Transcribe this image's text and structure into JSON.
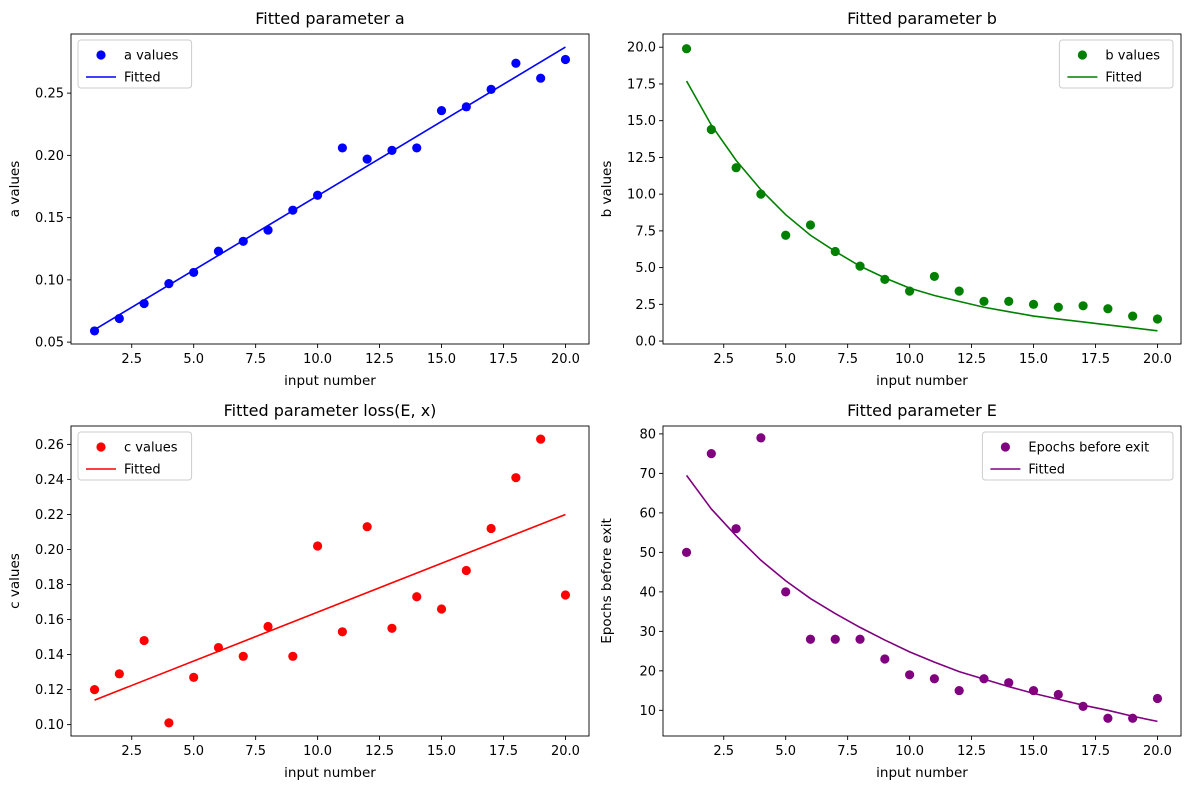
{
  "chart_data": [
    {
      "type": "scatter",
      "title": "Fitted parameter a",
      "xlabel": "input number",
      "ylabel": "a values",
      "xlim": [
        0.05,
        20.95
      ],
      "ylim": [
        0.0485,
        0.2975
      ],
      "xticks": [
        "2.5",
        "5.0",
        "7.5",
        "10.0",
        "12.5",
        "15.0",
        "17.5",
        "20.0"
      ],
      "yticks": [
        "0.05",
        "0.10",
        "0.15",
        "0.20",
        "0.25"
      ],
      "legend_position": "upper-left",
      "grid": false,
      "series": [
        {
          "name": "a values",
          "kind": "scatter",
          "color": "#0000ff",
          "x": [
            1,
            2,
            3,
            4,
            5,
            6,
            7,
            8,
            9,
            10,
            11,
            12,
            13,
            14,
            15,
            16,
            17,
            18,
            19,
            20
          ],
          "y": [
            0.059,
            0.069,
            0.081,
            0.097,
            0.106,
            0.123,
            0.131,
            0.14,
            0.156,
            0.168,
            0.206,
            0.197,
            0.204,
            0.206,
            0.236,
            0.239,
            0.253,
            0.274,
            0.262,
            0.277
          ]
        },
        {
          "name": "Fitted",
          "kind": "line",
          "color": "#0000ff",
          "x": [
            1,
            20
          ],
          "y": [
            0.06,
            0.287
          ]
        }
      ]
    },
    {
      "type": "scatter",
      "title": "Fitted parameter b",
      "xlabel": "input number",
      "ylabel": "b values",
      "xlim": [
        0.05,
        20.95
      ],
      "ylim": [
        -0.2,
        20.9
      ],
      "xticks": [
        "2.5",
        "5.0",
        "7.5",
        "10.0",
        "12.5",
        "15.0",
        "17.5",
        "20.0"
      ],
      "yticks": [
        "0.0",
        "2.5",
        "5.0",
        "7.5",
        "10.0",
        "12.5",
        "15.0",
        "17.5",
        "20.0"
      ],
      "legend_position": "upper-right",
      "grid": false,
      "series": [
        {
          "name": "b values",
          "kind": "scatter",
          "color": "#008000",
          "x": [
            1,
            2,
            3,
            4,
            5,
            6,
            7,
            8,
            9,
            10,
            11,
            12,
            13,
            14,
            15,
            16,
            17,
            18,
            19,
            20
          ],
          "y": [
            19.9,
            14.4,
            11.8,
            10.0,
            7.2,
            7.9,
            6.1,
            5.1,
            4.2,
            3.4,
            4.4,
            3.4,
            2.7,
            2.7,
            2.5,
            2.3,
            2.4,
            2.2,
            1.7,
            1.5
          ]
        },
        {
          "name": "Fitted",
          "kind": "line",
          "color": "#008000",
          "x": [
            1,
            2,
            3,
            4,
            5,
            6,
            7,
            8,
            9,
            10,
            11,
            12,
            13,
            14,
            15,
            16,
            17,
            18,
            19,
            20
          ],
          "y": [
            17.7,
            14.7,
            12.3,
            10.3,
            8.6,
            7.2,
            6.1,
            5.1,
            4.3,
            3.6,
            3.1,
            2.7,
            2.3,
            2.0,
            1.7,
            1.5,
            1.3,
            1.1,
            0.9,
            0.7
          ]
        }
      ]
    },
    {
      "type": "scatter",
      "title": "Fitted parameter loss(E, x)",
      "xlabel": "input number",
      "ylabel": "c values",
      "xlim": [
        0.05,
        20.95
      ],
      "ylim": [
        0.0935,
        0.2705
      ],
      "xticks": [
        "2.5",
        "5.0",
        "7.5",
        "10.0",
        "12.5",
        "15.0",
        "17.5",
        "20.0"
      ],
      "yticks": [
        "0.10",
        "0.12",
        "0.14",
        "0.16",
        "0.18",
        "0.20",
        "0.22",
        "0.24",
        "0.26"
      ],
      "legend_position": "upper-left",
      "grid": false,
      "series": [
        {
          "name": "c values",
          "kind": "scatter",
          "color": "#ff0000",
          "x": [
            1,
            2,
            3,
            4,
            5,
            6,
            7,
            8,
            9,
            10,
            11,
            12,
            13,
            14,
            15,
            16,
            17,
            18,
            19,
            20
          ],
          "y": [
            0.12,
            0.129,
            0.148,
            0.101,
            0.127,
            0.144,
            0.139,
            0.156,
            0.139,
            0.202,
            0.153,
            0.213,
            0.155,
            0.173,
            0.166,
            0.188,
            0.212,
            0.241,
            0.263,
            0.174
          ]
        },
        {
          "name": "Fitted",
          "kind": "line",
          "color": "#ff0000",
          "x": [
            1,
            20
          ],
          "y": [
            0.114,
            0.22
          ]
        }
      ]
    },
    {
      "type": "scatter",
      "title": "Fitted parameter E",
      "xlabel": "input number",
      "ylabel": "Epochs before exit",
      "xlim": [
        0.05,
        20.95
      ],
      "ylim": [
        3.5,
        82.0
      ],
      "xticks": [
        "2.5",
        "5.0",
        "7.5",
        "10.0",
        "12.5",
        "15.0",
        "17.5",
        "20.0"
      ],
      "yticks": [
        "10",
        "20",
        "30",
        "40",
        "50",
        "60",
        "70",
        "80"
      ],
      "legend_position": "upper-right",
      "grid": false,
      "series": [
        {
          "name": "Epochs before exit",
          "kind": "scatter",
          "color": "#800080",
          "x": [
            1,
            2,
            3,
            4,
            5,
            6,
            7,
            8,
            9,
            10,
            11,
            12,
            13,
            14,
            15,
            16,
            17,
            18,
            19,
            20
          ],
          "y": [
            50,
            75,
            56,
            79,
            40,
            28,
            28,
            28,
            23,
            19,
            18,
            15,
            18,
            17,
            15,
            14,
            11,
            8,
            8,
            13
          ]
        },
        {
          "name": "Fitted",
          "kind": "line",
          "color": "#800080",
          "x": [
            1,
            2,
            3,
            4,
            5,
            6,
            7,
            8,
            9,
            10,
            11,
            12,
            13,
            14,
            15,
            16,
            17,
            18,
            19,
            20
          ],
          "y": [
            69.5,
            61.0,
            54.2,
            48.0,
            42.8,
            38.3,
            34.5,
            31.0,
            27.8,
            24.8,
            22.2,
            19.8,
            17.9,
            16.0,
            14.3,
            12.8,
            11.3,
            10.0,
            8.5,
            7.2
          ]
        }
      ]
    }
  ]
}
